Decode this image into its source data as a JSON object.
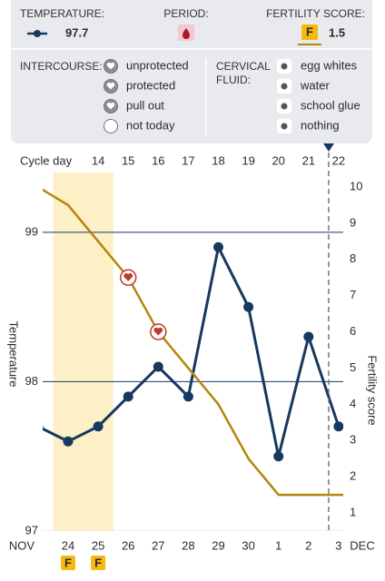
{
  "legend": {
    "temperature_label": "TEMPERATURE:",
    "temperature": 97.7,
    "period_label": "PERIOD:",
    "fertility_label": "FERTILITY SCORE:",
    "fertility_badge": "F",
    "fertility_score": 1.5,
    "intercourse_label": "INTERCOURSE:",
    "intercourse_options": [
      "unprotected",
      "protected",
      "pull out",
      "not today"
    ],
    "fluid_label": [
      "CERVICAL",
      "FLUID:"
    ],
    "fluid_options": [
      "egg whites",
      "water",
      "school glue",
      "nothing"
    ]
  },
  "chart_data": {
    "type": "line",
    "cycle_day_label": "Cycle day",
    "cycle_days": [
      null,
      null,
      "14",
      "15",
      "16",
      "17",
      "18",
      "19",
      "20",
      "21",
      "22",
      null
    ],
    "categories": [
      null,
      "24",
      "25",
      "26",
      "27",
      "28",
      "29",
      "30",
      "1",
      "2",
      "3",
      null
    ],
    "month_start": "NOV",
    "month_end": "DEC",
    "fertile": [
      null,
      "F",
      "F",
      null,
      null,
      null,
      null,
      null,
      null,
      null,
      null,
      null
    ],
    "intercourse": [
      null,
      null,
      null,
      "unprotected",
      "unprotected",
      null,
      null,
      null,
      null,
      null,
      null,
      null
    ],
    "series": [
      {
        "name": "Temperature",
        "color": "#16395f",
        "values": [
          97.7,
          97.6,
          97.7,
          97.9,
          98.1,
          97.9,
          98.9,
          98.5,
          97.5,
          98.3,
          97.7,
          null
        ]
      },
      {
        "name": "Fertility score",
        "color": "#b5860b",
        "axis": "y2",
        "values": [
          10,
          9.5,
          8.5,
          7.5,
          6,
          5,
          4,
          2.5,
          1.5,
          1.5,
          1.5,
          1.5
        ]
      }
    ],
    "ylim": [
      97,
      99.4
    ],
    "yticks": [
      97,
      98,
      99
    ],
    "y2lim": [
      0.5,
      10.4
    ],
    "y2ticks": [
      1,
      2,
      3,
      4,
      5,
      6,
      7,
      8,
      9,
      10
    ]
  }
}
